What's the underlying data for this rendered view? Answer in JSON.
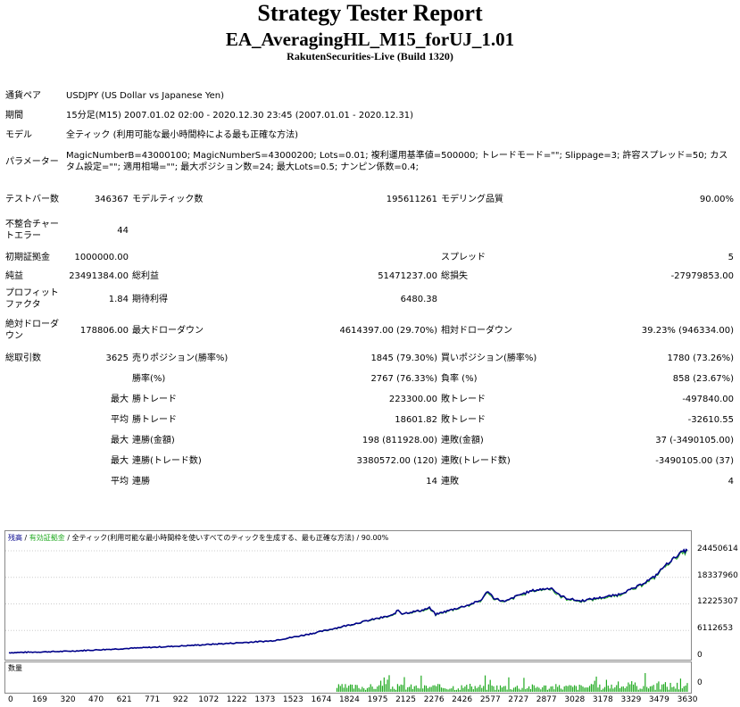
{
  "header": {
    "title": "Strategy Tester Report",
    "expert": "EA_AveragingHL_M15_forUJ_1.01",
    "server": "RakutenSecurities-Live (Build 1320)"
  },
  "info": {
    "pair_label": "通貨ペア",
    "pair_value": "USDJPY (US Dollar vs Japanese Yen)",
    "period_label": "期間",
    "period_value": "15分足(M15) 2007.01.02 02:00 - 2020.12.30 23:45 (2007.01.01 - 2020.12.31)",
    "model_label": "モデル",
    "model_value": "全ティック (利用可能な最小時間枠による最も正確な方法)",
    "params_label": "パラメーター",
    "params_value": "MagicNumberB=43000100; MagicNumberS=43000200; Lots=0.01; 複利運用基準値=500000; トレードモード=\"\"; Slippage=3; 許容スプレッド=50; カスタム設定=\"\"; 適用相場=\"\"; 最大ポジション数=24; 最大Lots=0.5; ナンピン係数=0.4;"
  },
  "stats": {
    "bars_label": "テストバー数",
    "bars": "346367",
    "ticks_label": "モデルティック数",
    "ticks": "195611261",
    "quality_label": "モデリング品質",
    "quality": "90.00%",
    "mismatch_label": "不整合チャートエラー",
    "mismatch": "44",
    "deposit_label": "初期証拠金",
    "deposit": "1000000.00",
    "spread_label": "スプレッド",
    "spread": "5",
    "net_label": "純益",
    "net": "23491384.00",
    "gross_profit_label": "総利益",
    "gross_profit": "51471237.00",
    "gross_loss_label": "総損失",
    "gross_loss": "-27979853.00",
    "pf_label": "プロフィットファクタ",
    "pf": "1.84",
    "expected_label": "期待利得",
    "expected": "6480.38",
    "abs_dd_label": "絶対ドローダウン",
    "abs_dd": "178806.00",
    "max_dd_label": "最大ドローダウン",
    "max_dd": "4614397.00 (29.70%)",
    "rel_dd_label": "相対ドローダウン",
    "rel_dd": "39.23% (946334.00)",
    "trades_label": "総取引数",
    "trades": "3625",
    "short_label": "売りポジション(勝率%)",
    "short": "1845 (79.30%)",
    "long_label": "買いポジション(勝率%)",
    "long": "1780 (73.26%)",
    "win_rate_label": "勝率(%)",
    "win_rate": "2767 (76.33%)",
    "loss_rate_label": "負率 (%)",
    "loss_rate": "858 (23.67%)",
    "max_prefix": "最大",
    "avg_prefix": "平均",
    "largest_win_label": "勝トレード",
    "largest_win": "223300.00",
    "largest_loss_label": "敗トレード",
    "largest_loss": "-497840.00",
    "avg_win_label": "勝トレード",
    "avg_win": "18601.82",
    "avg_loss_label": "敗トレード",
    "avg_loss": "-32610.55",
    "cons_wins_money_label": "連勝(金額)",
    "cons_wins_money": "198 (811928.00)",
    "cons_losses_money_label": "連敗(金額)",
    "cons_losses_money": "37 (-3490105.00)",
    "cons_wins_count_label": "連勝(トレード数)",
    "cons_wins_count": "3380572.00 (120)",
    "cons_losses_count_label": "連敗(トレード数)",
    "cons_losses_count": "-3490105.00 (37)",
    "avg_cons_wins_label": "連勝",
    "avg_cons_wins": "14",
    "avg_cons_losses_label": "連敗",
    "avg_cons_losses": "4"
  },
  "chart_legend": {
    "balance": "残高",
    "sep1": " / ",
    "equity": "有効証拠金",
    "sep2": " / ",
    "rest": "全ティック(利用可能な最小時間枠を使いすべてのティックを生成する、最も正確な方法) / 90.00%"
  },
  "volume_label": "数量",
  "chart_data": {
    "type": "line",
    "series": [
      {
        "name": "残高",
        "color": "#00008b"
      },
      {
        "name": "有効証拠金",
        "color": "#22aa22"
      }
    ],
    "x_ticks": [
      "0",
      "169",
      "320",
      "470",
      "621",
      "771",
      "922",
      "1072",
      "1222",
      "1373",
      "1523",
      "1674",
      "1824",
      "1975",
      "2125",
      "2276",
      "2426",
      "2577",
      "2727",
      "2877",
      "3028",
      "3178",
      "3329",
      "3479",
      "3630"
    ],
    "y_ticks": [
      "24450614",
      "18337960",
      "12225307",
      "6112653",
      "0"
    ],
    "ylim": [
      0,
      26500000
    ],
    "xlim": [
      0,
      3625
    ],
    "balance_points": [
      [
        0,
        1000000
      ],
      [
        300,
        1300000
      ],
      [
        600,
        1900000
      ],
      [
        900,
        2500000
      ],
      [
        1200,
        3200000
      ],
      [
        1400,
        3700000
      ],
      [
        1524,
        4600000
      ],
      [
        1650,
        5700000
      ],
      [
        1800,
        7200000
      ],
      [
        1950,
        8700000
      ],
      [
        2050,
        9600000
      ],
      [
        2080,
        10800000
      ],
      [
        2100,
        10000000
      ],
      [
        2200,
        10700000
      ],
      [
        2247,
        11300000
      ],
      [
        2280,
        9800000
      ],
      [
        2350,
        10700000
      ],
      [
        2450,
        11900000
      ],
      [
        2520,
        13000000
      ],
      [
        2560,
        15200000
      ],
      [
        2590,
        13600000
      ],
      [
        2650,
        12700000
      ],
      [
        2720,
        14200000
      ],
      [
        2800,
        15300000
      ],
      [
        2900,
        15900000
      ],
      [
        2935,
        14400000
      ],
      [
        2980,
        13500000
      ],
      [
        3050,
        12900000
      ],
      [
        3150,
        13600000
      ],
      [
        3250,
        14300000
      ],
      [
        3350,
        16000000
      ],
      [
        3450,
        18500000
      ],
      [
        3500,
        20800000
      ],
      [
        3560,
        23000000
      ],
      [
        3600,
        24300000
      ],
      [
        3625,
        24500000
      ]
    ],
    "volume_ticks": [
      "0"
    ]
  }
}
